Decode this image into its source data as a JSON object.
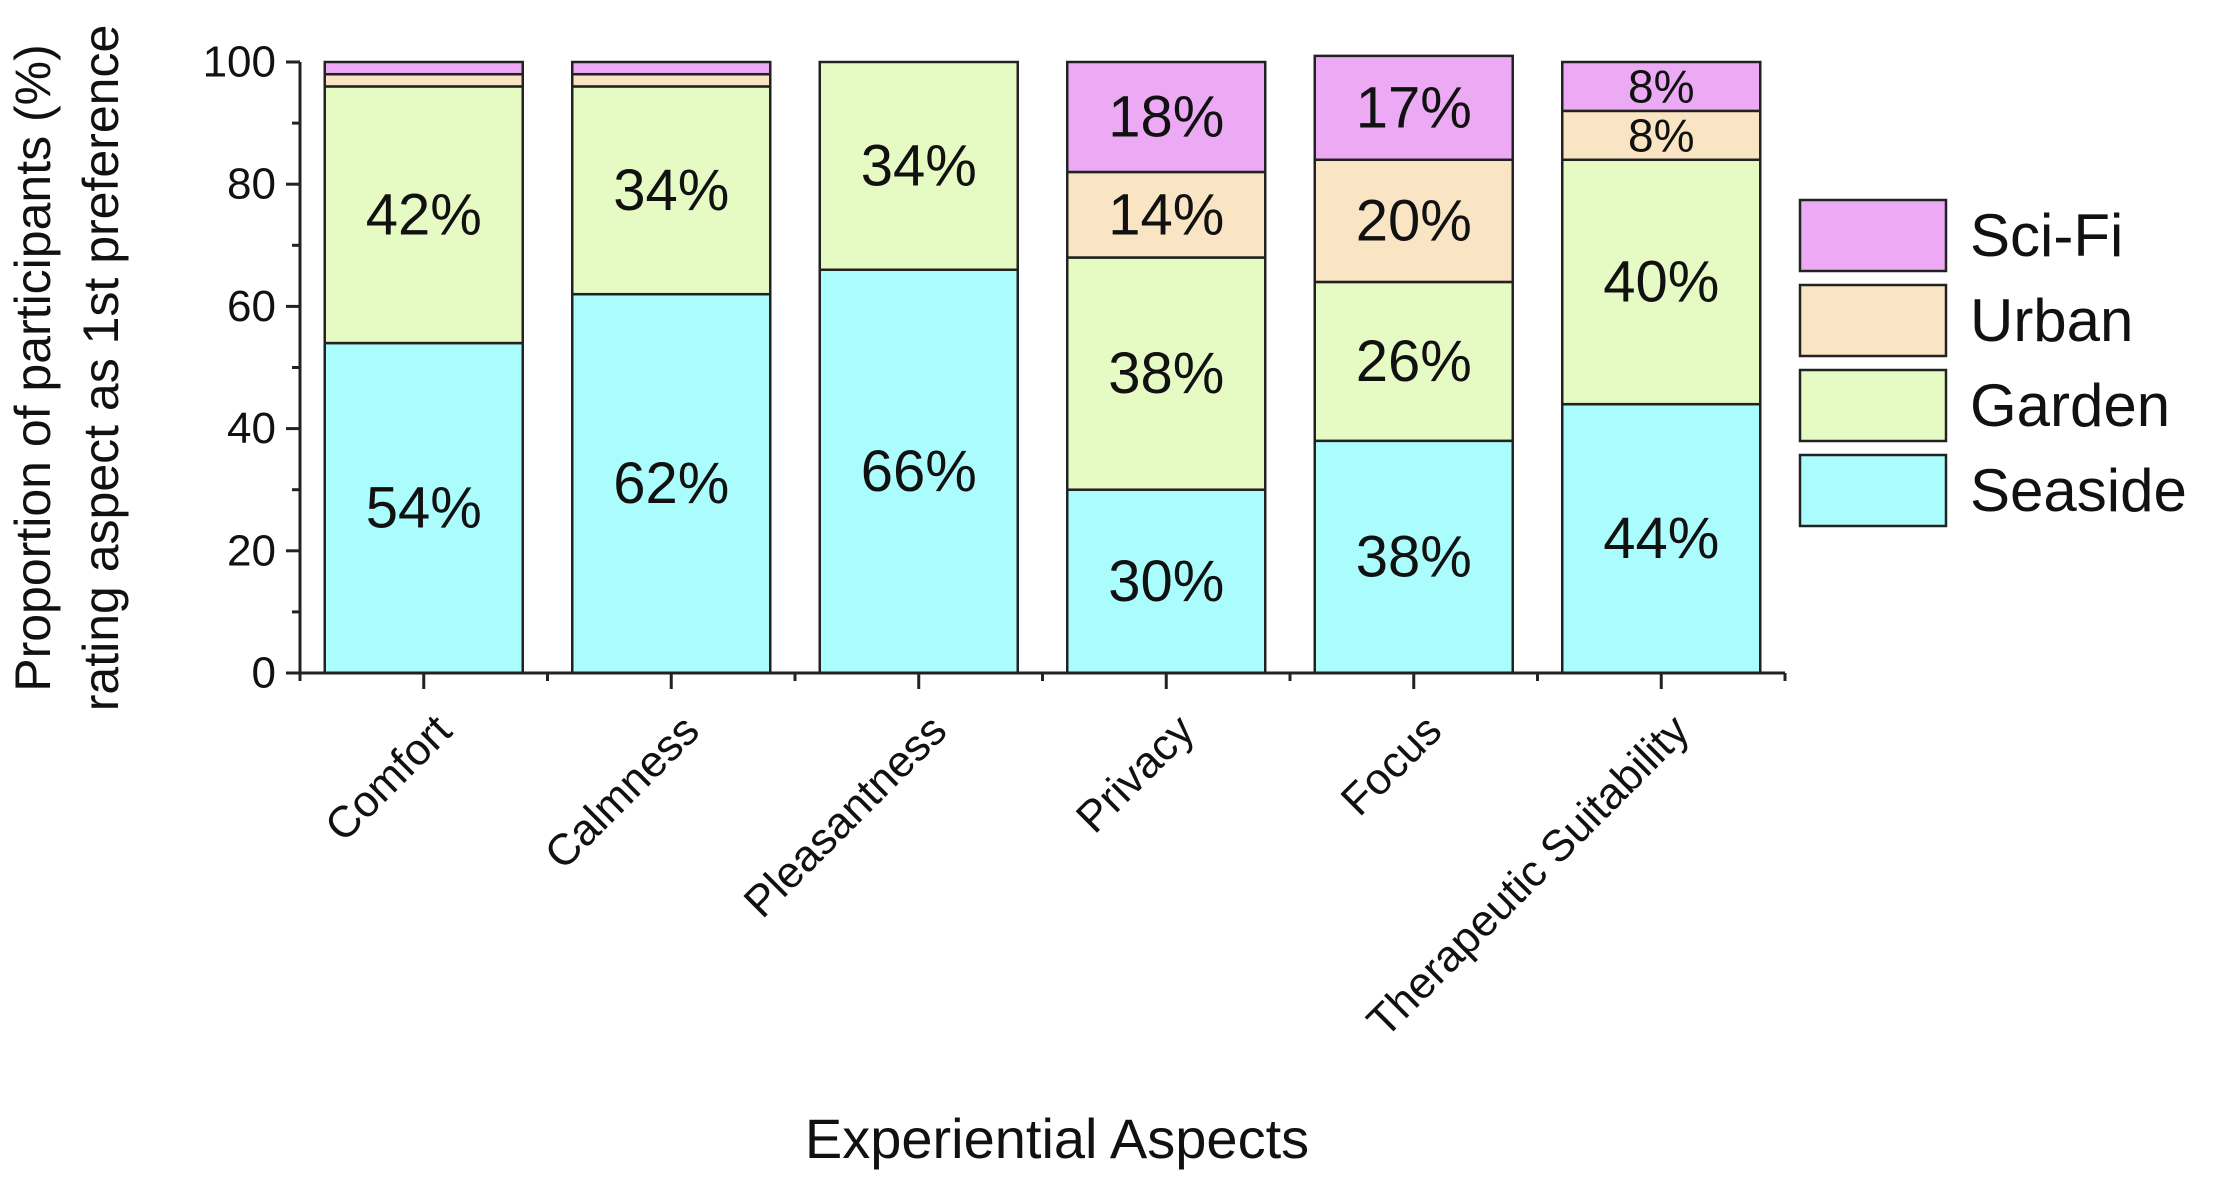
{
  "chart_data": {
    "type": "bar",
    "stacked": true,
    "categories": [
      "Comfort",
      "Calmness",
      "Pleasantness",
      "Privacy",
      "Focus",
      "Therapeutic Suitability"
    ],
    "series": [
      {
        "name": "Seaside",
        "color": "#aafdfc",
        "values": [
          54,
          62,
          66,
          30,
          38,
          44
        ],
        "labels": [
          "54%",
          "62%",
          "66%",
          "30%",
          "38%",
          "44%"
        ]
      },
      {
        "name": "Garden",
        "color": "#e6fac4",
        "values": [
          42,
          34,
          34,
          38,
          26,
          40
        ],
        "labels": [
          "42%",
          "34%",
          "34%",
          "38%",
          "26%",
          "40%"
        ]
      },
      {
        "name": "Urban",
        "color": "#f9e5c3",
        "values": [
          2,
          2,
          0,
          14,
          20,
          8
        ],
        "labels": [
          "",
          "",
          "",
          "14%",
          "20%",
          "8%"
        ]
      },
      {
        "name": "Sci-Fi",
        "color": "#ecaaf5",
        "values": [
          2,
          2,
          0,
          18,
          17,
          8
        ],
        "labels": [
          "",
          "",
          "",
          "18%",
          "17%",
          "8%"
        ]
      }
    ],
    "legend_order": [
      "Sci-Fi",
      "Urban",
      "Garden",
      "Seaside"
    ],
    "title": "",
    "xlabel": "Experiential Aspects",
    "ylabel_line1": "Proportion of participants (%)",
    "ylabel_line2": "rating aspect as 1st preference",
    "ylim": [
      0,
      100
    ],
    "yticks": [
      0,
      20,
      40,
      60,
      80,
      100
    ],
    "legend_position": "right"
  }
}
